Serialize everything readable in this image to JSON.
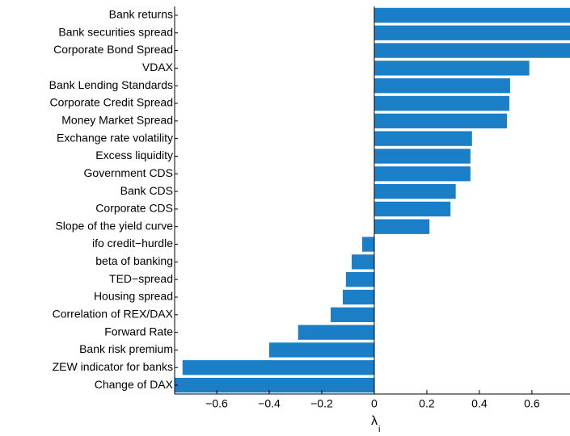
{
  "chart_data": {
    "type": "barh",
    "categories": [
      "Bank returns",
      "Bank securities spread",
      "Corporate Bond Spread",
      "VDAX",
      "Bank Lending Standards",
      "Corporate Credit Spread",
      "Money Market Spread",
      "Exchange rate volatility",
      "Excess liquidity",
      "Government CDS",
      "Bank CDS",
      "Corporate CDS",
      "Slope of the yield curve",
      "ifo credit−hurdle",
      "beta of banking",
      "TED−spread",
      "Housing spread",
      "Correlation of REX/DAX",
      "Forward Rate",
      "Bank risk premium",
      "ZEW indicator for banks",
      "Change of DAX"
    ],
    "values": [
      0.745,
      0.745,
      0.745,
      0.59,
      0.517,
      0.514,
      0.505,
      0.372,
      0.366,
      0.366,
      0.31,
      0.29,
      0.21,
      -0.046,
      -0.086,
      -0.108,
      -0.12,
      -0.166,
      -0.29,
      -0.4,
      -0.73,
      -0.76
    ],
    "color": "#1a7fc6",
    "xlim": [
      -0.76,
      0.745
    ],
    "xticks": [
      {
        "value": -0.6,
        "label": "−0.6"
      },
      {
        "value": -0.4,
        "label": "−0.4"
      },
      {
        "value": -0.2,
        "label": "−0.2"
      },
      0,
      0.2,
      0.4,
      0.6
    ],
    "x_label": {
      "symbol": "λ",
      "subscript": "i"
    }
  }
}
